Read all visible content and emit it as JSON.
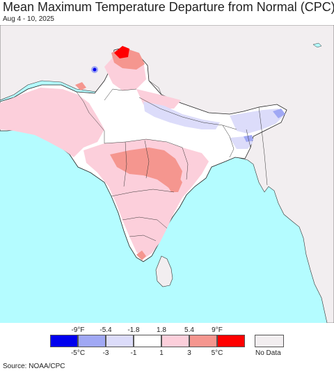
{
  "title": "Mean Maximum Temperature Departure from Normal (CPC)",
  "subtitle": "Aug 4 - 10, 2025",
  "source": "Source: NOAA/CPC",
  "legend": {
    "fahrenheit_ticks": [
      "-9°F",
      "-5.4",
      "-1.8",
      "1.8",
      "5.4",
      "9°F"
    ],
    "celsius_ticks": [
      "-5°C",
      "-3",
      "-1",
      "1",
      "3",
      "5°C"
    ],
    "bins": [
      {
        "range": "< -5°C",
        "color": "#0000ee"
      },
      {
        "range": "-5 to -3",
        "color": "#a0a8f4"
      },
      {
        "range": "-3 to -1",
        "color": "#dcdcfa"
      },
      {
        "range": "-1 to 1",
        "color": "#ffffff"
      },
      {
        "range": "1 to 3",
        "color": "#fccfdb"
      },
      {
        "range": "3 to 5",
        "color": "#f5968f"
      },
      {
        "range": "> 5°C",
        "color": "#ff0000"
      }
    ],
    "no_data_label": "No Data",
    "no_data_color": "#f2eef0"
  },
  "colors": {
    "ocean": "#b4fcff",
    "land_no_data": "#f2eef0",
    "boundary": "#222222"
  }
}
